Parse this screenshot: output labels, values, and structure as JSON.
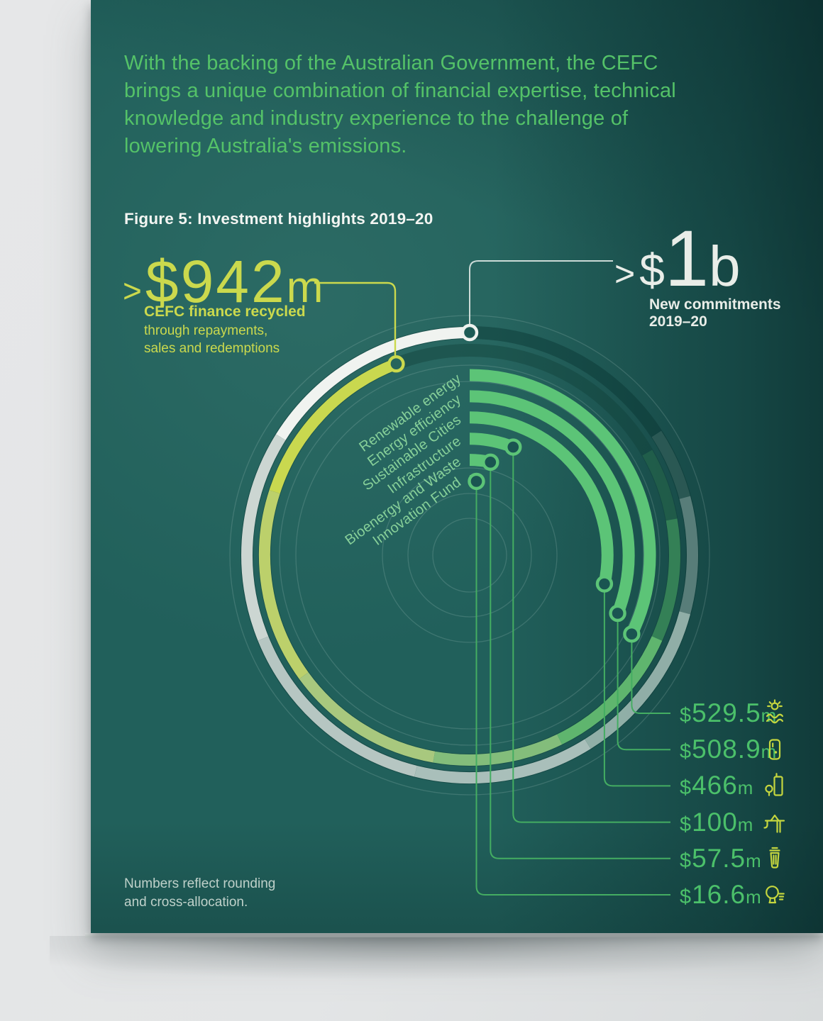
{
  "page": {
    "intro_lines": [
      "With the backing of the Australian Government, the CEFC",
      "brings a unique combination of financial expertise, technical",
      "knowledge and industry experience to the challenge of",
      "lowering Australia's emissions."
    ],
    "figure_caption": "Figure 5: Investment highlights 2019–20",
    "footnote_line1": "Numbers reflect rounding",
    "footnote_line2": "and cross-allocation."
  },
  "highlights": {
    "recycled": {
      "prefix": ">",
      "amount": "$942",
      "unit": "m",
      "title": "CEFC finance recycled",
      "subtitle_line1": "through repayments,",
      "subtitle_line2": "sales and redemptions"
    },
    "commitments": {
      "prefix": ">",
      "currency": "$",
      "amount": "1",
      "unit": "b",
      "label": "New commitments 2019–20"
    }
  },
  "chart_data": {
    "type": "radial-bar",
    "title": "Figure 5: Investment highlights 2019–20",
    "categories": [
      "Renewable energy",
      "Energy efficiency",
      "Sustainable Cities",
      "Infrastructure",
      "Bioenergy and Waste",
      "Innovation Fund"
    ],
    "series": [
      {
        "name": "Renewable energy",
        "value_label": "$529.5m",
        "value_m": 529.5,
        "icon": "sun-waves-icon"
      },
      {
        "name": "Energy efficiency",
        "value_label": "$508.9m",
        "value_m": 508.9,
        "icon": "smart-panel-icon"
      },
      {
        "name": "Sustainable Cities",
        "value_label": "$466m",
        "value_m": 466.0,
        "icon": "city-building-icon"
      },
      {
        "name": "Infrastructure",
        "value_label": "$100m",
        "value_m": 100.0,
        "icon": "crane-icon"
      },
      {
        "name": "Bioenergy and Waste",
        "value_label": "$57.5m",
        "value_m": 57.5,
        "icon": "waste-bin-icon"
      },
      {
        "name": "Innovation Fund",
        "value_label": "$16.6m",
        "value_m": 16.6,
        "icon": "idea-bulb-icon"
      }
    ],
    "annotations": [
      {
        "label": ">$942m",
        "description": "CEFC finance recycled through repayments, sales and redemptions",
        "value_m": 942
      },
      {
        "label": ">$1b",
        "description": "New commitments 2019–20",
        "value_m": 1000
      }
    ],
    "legend_position": "around-arc",
    "grid": false
  },
  "colors": {
    "page_teal": "#21605b",
    "bar_green": "#5cc477",
    "lime_accent": "#cbd94d",
    "white_accent": "#e9ede8",
    "category_label_green": "#87d099",
    "value_green": "#4bc06a",
    "icon_lime": "#c5d63e",
    "connector_green": "#44ad62"
  }
}
